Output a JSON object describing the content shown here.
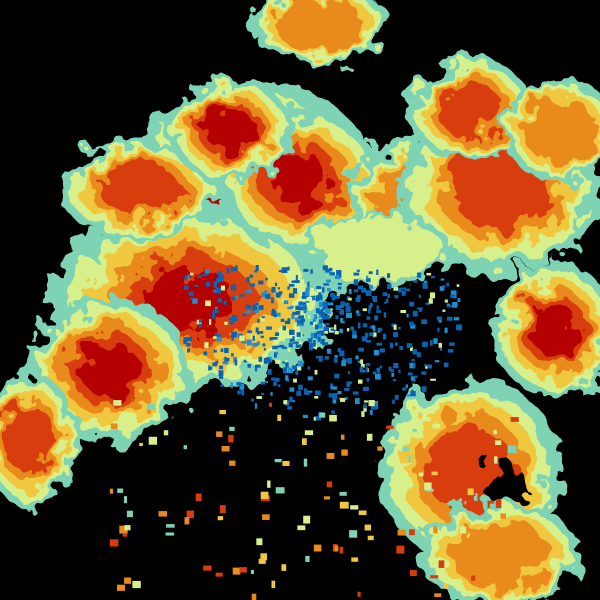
{
  "view": {
    "type": "weather-radar-reflectivity",
    "background": "#000000",
    "palette": [
      "#0a64b4",
      "#1e90d2",
      "#7ed3b4",
      "#d8f08c",
      "#f0c840",
      "#e88a1e",
      "#d83c0a",
      "#b40000"
    ]
  }
}
